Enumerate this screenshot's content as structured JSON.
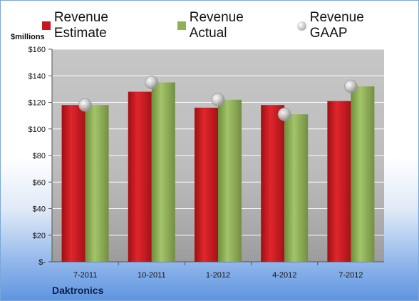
{
  "page": {
    "unit_label": "$millions",
    "company": "Daktronics"
  },
  "chart_data": {
    "type": "bar",
    "categories": [
      "7-2011",
      "10-2011",
      "1-2012",
      "4-2012",
      "7-2012"
    ],
    "series": [
      {
        "name": "Revenue Estimate",
        "type": "bar",
        "color": "#c8161d",
        "values": [
          118,
          128,
          116,
          118,
          121
        ]
      },
      {
        "name": "Revenue Actual",
        "type": "bar",
        "color": "#8db154",
        "values": [
          118,
          135,
          122,
          111,
          132
        ]
      },
      {
        "name": "Revenue GAAP",
        "type": "scatter",
        "color": "#b8b8b8",
        "values": [
          118,
          135,
          122,
          111,
          132
        ]
      }
    ],
    "y_ticks": [
      {
        "value": 0,
        "label": "$-"
      },
      {
        "value": 20,
        "label": "$20"
      },
      {
        "value": 40,
        "label": "$40"
      },
      {
        "value": 60,
        "label": "$60"
      },
      {
        "value": 80,
        "label": "$80"
      },
      {
        "value": 100,
        "label": "$100"
      },
      {
        "value": 120,
        "label": "$120"
      },
      {
        "value": 140,
        "label": "$140"
      },
      {
        "value": 160,
        "label": "$160"
      }
    ],
    "ylim": [
      0,
      160
    ],
    "grid": true,
    "legend": "top"
  }
}
